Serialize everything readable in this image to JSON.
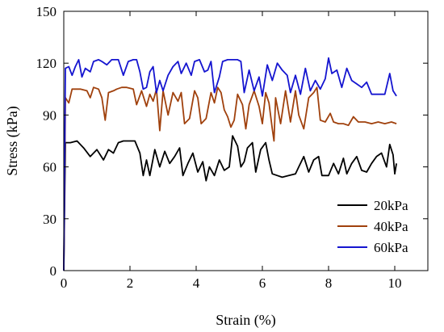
{
  "chart_data": {
    "type": "line",
    "xlabel": "Strain (%)",
    "ylabel": "Stress (kPa)",
    "xlim": [
      0,
      11
    ],
    "ylim": [
      0,
      150
    ],
    "x_ticks": [
      0,
      2,
      4,
      6,
      8,
      10
    ],
    "y_ticks": [
      0,
      30,
      60,
      90,
      120,
      150
    ],
    "grid": false,
    "legend_position": "bottom-right",
    "series": [
      {
        "name": "20kPa",
        "color": "#000000",
        "points": [
          [
            0,
            0
          ],
          [
            0.05,
            74
          ],
          [
            0.2,
            74
          ],
          [
            0.4,
            75
          ],
          [
            0.6,
            71
          ],
          [
            0.8,
            66
          ],
          [
            1.0,
            70
          ],
          [
            1.2,
            64
          ],
          [
            1.35,
            70
          ],
          [
            1.5,
            68
          ],
          [
            1.65,
            74
          ],
          [
            1.8,
            75
          ],
          [
            2.0,
            75
          ],
          [
            2.15,
            75
          ],
          [
            2.3,
            68
          ],
          [
            2.4,
            55
          ],
          [
            2.5,
            64
          ],
          [
            2.6,
            55
          ],
          [
            2.75,
            70
          ],
          [
            2.9,
            60
          ],
          [
            3.05,
            69
          ],
          [
            3.2,
            62
          ],
          [
            3.35,
            66
          ],
          [
            3.5,
            71
          ],
          [
            3.6,
            55
          ],
          [
            3.75,
            62
          ],
          [
            3.9,
            68
          ],
          [
            4.05,
            57
          ],
          [
            4.2,
            63
          ],
          [
            4.3,
            52
          ],
          [
            4.4,
            60
          ],
          [
            4.55,
            55
          ],
          [
            4.7,
            64
          ],
          [
            4.85,
            58
          ],
          [
            5.0,
            60
          ],
          [
            5.1,
            78
          ],
          [
            5.25,
            72
          ],
          [
            5.35,
            60
          ],
          [
            5.45,
            63
          ],
          [
            5.55,
            71
          ],
          [
            5.7,
            74
          ],
          [
            5.8,
            57
          ],
          [
            5.95,
            70
          ],
          [
            6.1,
            74
          ],
          [
            6.2,
            64
          ],
          [
            6.3,
            56
          ],
          [
            6.45,
            55
          ],
          [
            6.6,
            54
          ],
          [
            6.8,
            55
          ],
          [
            7.0,
            56
          ],
          [
            7.1,
            60
          ],
          [
            7.25,
            66
          ],
          [
            7.4,
            57
          ],
          [
            7.55,
            64
          ],
          [
            7.7,
            66
          ],
          [
            7.8,
            55
          ],
          [
            8.0,
            55
          ],
          [
            8.15,
            62
          ],
          [
            8.3,
            56
          ],
          [
            8.45,
            65
          ],
          [
            8.55,
            56
          ],
          [
            8.7,
            62
          ],
          [
            8.85,
            66
          ],
          [
            9.0,
            58
          ],
          [
            9.15,
            57
          ],
          [
            9.3,
            62
          ],
          [
            9.45,
            66
          ],
          [
            9.6,
            68
          ],
          [
            9.75,
            60
          ],
          [
            9.85,
            73
          ],
          [
            9.95,
            67
          ],
          [
            10.0,
            56
          ],
          [
            10.05,
            62
          ]
        ]
      },
      {
        "name": "40kPa",
        "color": "#a0410d",
        "points": [
          [
            0,
            0
          ],
          [
            0.05,
            100
          ],
          [
            0.15,
            97
          ],
          [
            0.25,
            105
          ],
          [
            0.5,
            105
          ],
          [
            0.7,
            104
          ],
          [
            0.8,
            100
          ],
          [
            0.9,
            106
          ],
          [
            1.05,
            105
          ],
          [
            1.15,
            100
          ],
          [
            1.25,
            87
          ],
          [
            1.35,
            103
          ],
          [
            1.5,
            104
          ],
          [
            1.6,
            105
          ],
          [
            1.75,
            106
          ],
          [
            1.9,
            106
          ],
          [
            2.1,
            105
          ],
          [
            2.2,
            96
          ],
          [
            2.35,
            104
          ],
          [
            2.5,
            95
          ],
          [
            2.6,
            102
          ],
          [
            2.7,
            98
          ],
          [
            2.8,
            105
          ],
          [
            2.9,
            81
          ],
          [
            3.0,
            104
          ],
          [
            3.15,
            90
          ],
          [
            3.3,
            103
          ],
          [
            3.45,
            98
          ],
          [
            3.55,
            103
          ],
          [
            3.65,
            85
          ],
          [
            3.8,
            88
          ],
          [
            3.95,
            104
          ],
          [
            4.05,
            100
          ],
          [
            4.15,
            85
          ],
          [
            4.3,
            88
          ],
          [
            4.45,
            103
          ],
          [
            4.55,
            97
          ],
          [
            4.65,
            106
          ],
          [
            4.75,
            103
          ],
          [
            4.85,
            93
          ],
          [
            4.95,
            89
          ],
          [
            5.05,
            83
          ],
          [
            5.15,
            87
          ],
          [
            5.25,
            102
          ],
          [
            5.4,
            96
          ],
          [
            5.5,
            82
          ],
          [
            5.6,
            96
          ],
          [
            5.75,
            104
          ],
          [
            5.9,
            95
          ],
          [
            6.0,
            85
          ],
          [
            6.1,
            103
          ],
          [
            6.2,
            97
          ],
          [
            6.3,
            82
          ],
          [
            6.35,
            75
          ],
          [
            6.4,
            100
          ],
          [
            6.55,
            85
          ],
          [
            6.7,
            104
          ],
          [
            6.85,
            86
          ],
          [
            7.0,
            104
          ],
          [
            7.1,
            90
          ],
          [
            7.25,
            82
          ],
          [
            7.4,
            100
          ],
          [
            7.55,
            103
          ],
          [
            7.65,
            106
          ],
          [
            7.75,
            87
          ],
          [
            7.9,
            86
          ],
          [
            8.05,
            91
          ],
          [
            8.15,
            86
          ],
          [
            8.3,
            85
          ],
          [
            8.45,
            85
          ],
          [
            8.6,
            84
          ],
          [
            8.75,
            89
          ],
          [
            8.9,
            86
          ],
          [
            9.1,
            86
          ],
          [
            9.3,
            85
          ],
          [
            9.5,
            86
          ],
          [
            9.7,
            85
          ],
          [
            9.9,
            86
          ],
          [
            10.05,
            85
          ]
        ]
      },
      {
        "name": "60kPa",
        "color": "#1515d0",
        "points": [
          [
            0,
            0
          ],
          [
            0.05,
            117
          ],
          [
            0.15,
            118
          ],
          [
            0.25,
            113
          ],
          [
            0.35,
            118
          ],
          [
            0.45,
            122
          ],
          [
            0.55,
            112
          ],
          [
            0.65,
            117
          ],
          [
            0.8,
            115
          ],
          [
            0.9,
            121
          ],
          [
            1.05,
            122
          ],
          [
            1.15,
            121
          ],
          [
            1.3,
            119
          ],
          [
            1.45,
            122
          ],
          [
            1.65,
            122
          ],
          [
            1.8,
            113
          ],
          [
            1.95,
            121
          ],
          [
            2.1,
            122
          ],
          [
            2.2,
            122
          ],
          [
            2.3,
            115
          ],
          [
            2.4,
            105
          ],
          [
            2.5,
            106
          ],
          [
            2.6,
            115
          ],
          [
            2.7,
            118
          ],
          [
            2.8,
            103
          ],
          [
            2.9,
            110
          ],
          [
            3.0,
            104
          ],
          [
            3.15,
            113
          ],
          [
            3.3,
            118
          ],
          [
            3.45,
            121
          ],
          [
            3.55,
            114
          ],
          [
            3.7,
            120
          ],
          [
            3.85,
            113
          ],
          [
            3.95,
            121
          ],
          [
            4.1,
            122
          ],
          [
            4.25,
            115
          ],
          [
            4.35,
            116
          ],
          [
            4.45,
            121
          ],
          [
            4.55,
            103
          ],
          [
            4.7,
            112
          ],
          [
            4.8,
            121
          ],
          [
            4.95,
            122
          ],
          [
            5.1,
            122
          ],
          [
            5.25,
            122
          ],
          [
            5.35,
            121
          ],
          [
            5.45,
            103
          ],
          [
            5.6,
            116
          ],
          [
            5.75,
            104
          ],
          [
            5.9,
            112
          ],
          [
            6.0,
            101
          ],
          [
            6.15,
            119
          ],
          [
            6.3,
            110
          ],
          [
            6.45,
            120
          ],
          [
            6.6,
            116
          ],
          [
            6.75,
            113
          ],
          [
            6.85,
            103
          ],
          [
            7.0,
            113
          ],
          [
            7.15,
            102
          ],
          [
            7.3,
            117
          ],
          [
            7.45,
            104
          ],
          [
            7.6,
            110
          ],
          [
            7.75,
            105
          ],
          [
            7.9,
            111
          ],
          [
            8.0,
            123
          ],
          [
            8.1,
            114
          ],
          [
            8.25,
            116
          ],
          [
            8.4,
            106
          ],
          [
            8.55,
            117
          ],
          [
            8.7,
            110
          ],
          [
            8.85,
            108
          ],
          [
            9.0,
            106
          ],
          [
            9.15,
            109
          ],
          [
            9.3,
            102
          ],
          [
            9.5,
            102
          ],
          [
            9.7,
            102
          ],
          [
            9.85,
            114
          ],
          [
            9.95,
            104
          ],
          [
            10.05,
            101
          ]
        ]
      }
    ]
  }
}
